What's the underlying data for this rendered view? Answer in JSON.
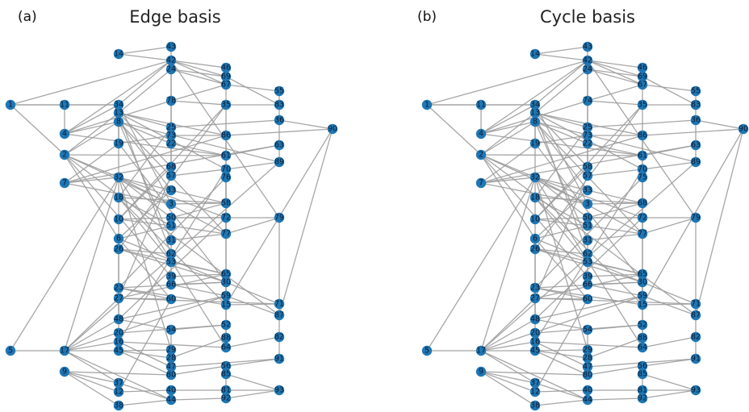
{
  "panels": [
    {
      "letter": "(a)",
      "title": "Edge basis",
      "nodes": [
        "43",
        "14",
        "42",
        "24",
        "46",
        "69",
        "67",
        "55",
        "1",
        "11",
        "34",
        "78",
        "35",
        "83",
        "13",
        "8",
        "36",
        "90",
        "4",
        "25",
        "73",
        "22",
        "86",
        "19",
        "2",
        "61",
        "63",
        "89",
        "68",
        "57",
        "70",
        "76",
        "7",
        "32",
        "33",
        "18",
        "3",
        "58",
        "10",
        "50",
        "72",
        "51",
        "77",
        "79",
        "31",
        "6",
        "26",
        "62",
        "53",
        "39",
        "65",
        "66",
        "23",
        "30",
        "27",
        "60",
        "59",
        "15",
        "71",
        "87",
        "48",
        "54",
        "52",
        "20",
        "16",
        "88",
        "64",
        "82",
        "45",
        "17",
        "5",
        "29",
        "28",
        "91",
        "47",
        "80",
        "9",
        "56",
        "85",
        "37",
        "12",
        "40",
        "81",
        "93",
        "38",
        "44",
        "92"
      ],
      "edge_count": 186
    },
    {
      "letter": "(b)",
      "title": "Cycle basis",
      "nodes": [
        "43",
        "14",
        "42",
        "24",
        "46",
        "69",
        "67",
        "55",
        "1",
        "11",
        "34",
        "74",
        "35",
        "83",
        "13",
        "8",
        "36",
        "90",
        "4",
        "25",
        "73",
        "22",
        "86",
        "19",
        "2",
        "61",
        "63",
        "89",
        "58",
        "57",
        "70",
        "75",
        "7",
        "32",
        "33",
        "18",
        "3",
        "68",
        "10",
        "50",
        "72",
        "51",
        "77",
        "79",
        "31",
        "6",
        "26",
        "62",
        "53",
        "39",
        "65",
        "66",
        "23",
        "30",
        "27",
        "60",
        "59",
        "15",
        "71",
        "87",
        "48",
        "54",
        "52",
        "20",
        "16",
        "88",
        "64",
        "82",
        "45",
        "17",
        "5",
        "29",
        "28",
        "91",
        "47",
        "80",
        "9",
        "56",
        "85",
        "37",
        "12",
        "40",
        "81",
        "93",
        "38",
        "44",
        "92"
      ],
      "edge_count": 186
    }
  ]
}
